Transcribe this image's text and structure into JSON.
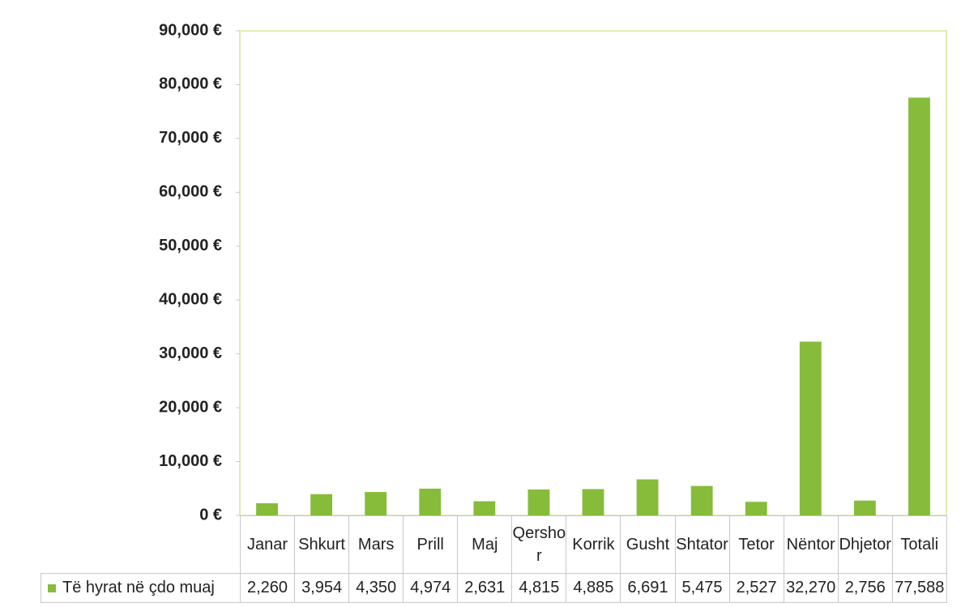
{
  "chart_data": {
    "type": "bar",
    "categories": [
      "Janar",
      "Shkurt",
      "Mars",
      "Prill",
      "Maj",
      "Qershor",
      "Korrik",
      "Gusht",
      "Shtator",
      "Tetor",
      "Nëntor",
      "Dhjetor",
      "Totali"
    ],
    "series": [
      {
        "name": "Të hyrat në çdo muaj",
        "color": "#86bc3a",
        "values": [
          2260,
          3954,
          4350,
          4974,
          2631,
          4815,
          4885,
          6691,
          5475,
          2527,
          32270,
          2756,
          77588
        ],
        "value_labels": [
          "2,260",
          "3,954",
          "4,350",
          "4,974",
          "2,631",
          "4,815",
          "4,885",
          "6,691",
          "5,475",
          "2,527",
          "32,270",
          "2,756",
          "77,588"
        ]
      }
    ],
    "ylim": [
      0,
      90000
    ],
    "yticks": [
      {
        "value": 0,
        "label": "0 €"
      },
      {
        "value": 10000,
        "label": "10,000 €"
      },
      {
        "value": 20000,
        "label": "20,000 €"
      },
      {
        "value": 30000,
        "label": "30,000 €"
      },
      {
        "value": 40000,
        "label": "40,000 €"
      },
      {
        "value": 50000,
        "label": "50,000 €"
      },
      {
        "value": 60000,
        "label": "60,000 €"
      },
      {
        "value": 70000,
        "label": "70,000 €"
      },
      {
        "value": 80000,
        "label": "80,000 €"
      },
      {
        "value": 90000,
        "label": "90,000 €"
      }
    ],
    "grid": false
  }
}
